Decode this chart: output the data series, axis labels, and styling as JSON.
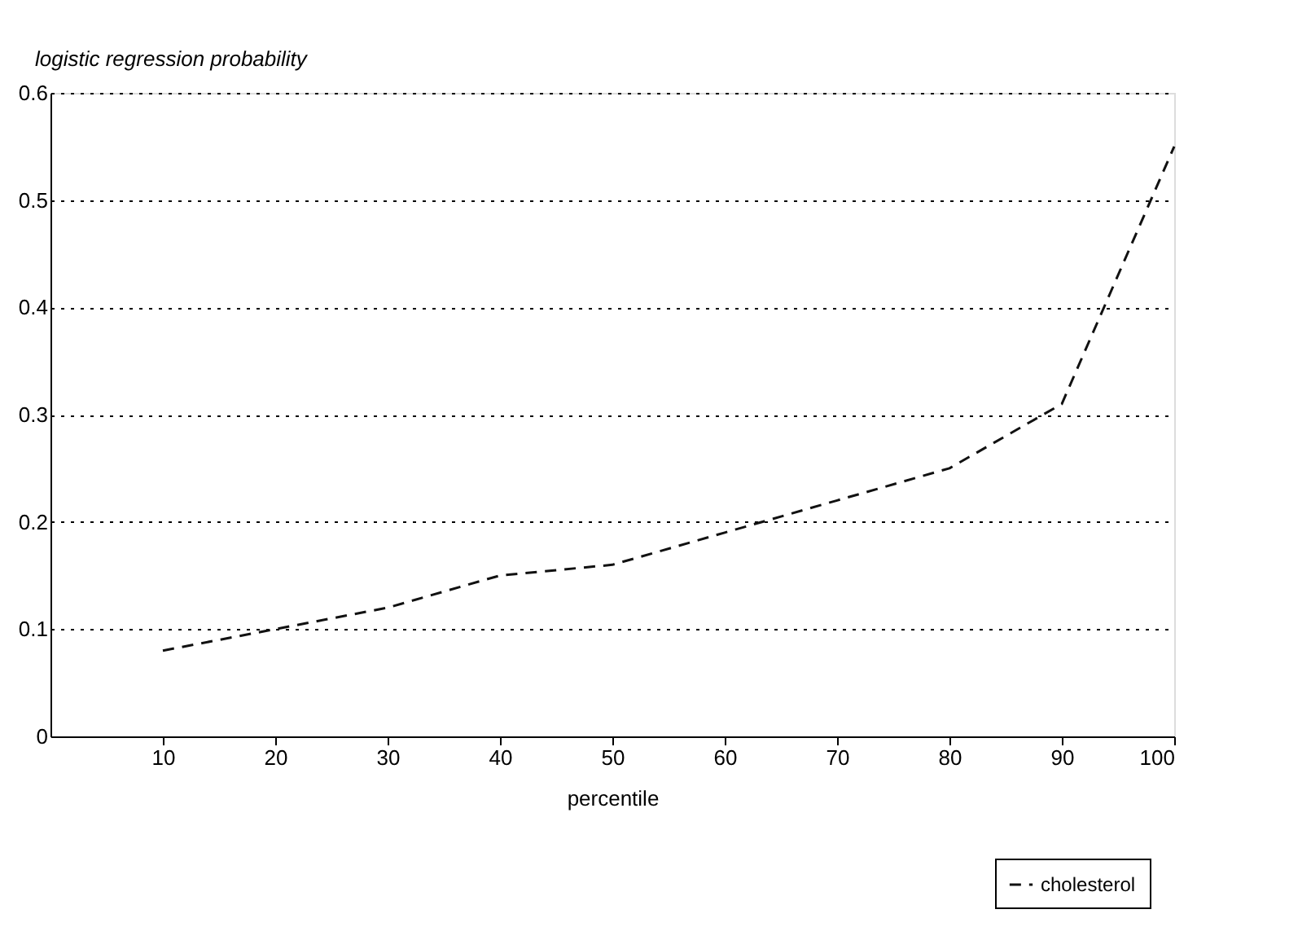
{
  "chart_data": {
    "type": "line",
    "xlabel": "percentile",
    "ylabel": "logistic regression probability",
    "x": [
      10,
      20,
      30,
      40,
      50,
      60,
      70,
      80,
      90,
      100
    ],
    "series": [
      {
        "name": "cholesterol",
        "color": "#111111",
        "values": [
          0.08,
          0.1,
          0.12,
          0.15,
          0.16,
          0.19,
          0.22,
          0.25,
          0.31,
          0.55
        ]
      }
    ],
    "xlim": [
      0,
      100
    ],
    "xticks": [
      10,
      20,
      30,
      40,
      50,
      60,
      70,
      80,
      90,
      100
    ],
    "ylim": [
      0,
      0.6
    ],
    "yticks": [
      0,
      0.1,
      0.2,
      0.3,
      0.4,
      0.5,
      0.6
    ],
    "grid": "y",
    "line_style": "dashed",
    "marker": "none",
    "legend": "bottom right"
  }
}
